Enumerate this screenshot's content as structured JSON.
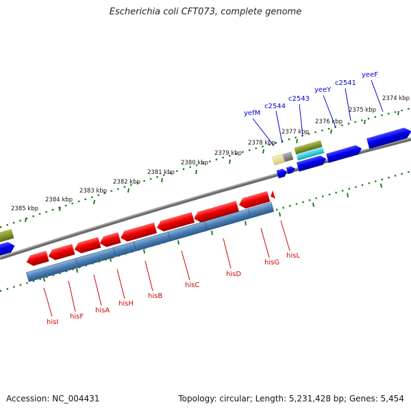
{
  "title": "Escherichia coli CFT073, complete genome",
  "footer": {
    "accession": "Accession: NC_004431",
    "summary": "Topology: circular; Length: 5,231,428 bp; Genes: 5,454"
  },
  "colors": {
    "background": "#ffffff",
    "backbone": "#808080",
    "tick_green": "#1a7a1a",
    "gene_red": "#ee0000",
    "gene_blue": "#0000ee",
    "operon_steelblue": "#4a7fb5",
    "gene_olive": "#7a8a2a",
    "gene_cyan": "#20c8d8",
    "gene_tan": "#e8d890",
    "label_red": "#cc0000",
    "label_blue": "#0000cc"
  },
  "scale_labels": [
    "2385 kbp",
    "2384 kbp",
    "2383 kbp",
    "2382 kbp",
    "2381 kbp",
    "2380 kbp",
    "2379 kbp",
    "2378 kbp",
    "2377 kbp",
    "2376 kbp",
    "2375 kbp",
    "2374 kbp"
  ],
  "genes_lower": [
    "hisI",
    "hisF",
    "hisA",
    "hisH",
    "hisB",
    "hisC",
    "hisD",
    "hisG",
    "hisL"
  ],
  "genes_upper": [
    "yefM",
    "c2544",
    "c2543",
    "yeeY",
    "c2541",
    "yeeF"
  ]
}
